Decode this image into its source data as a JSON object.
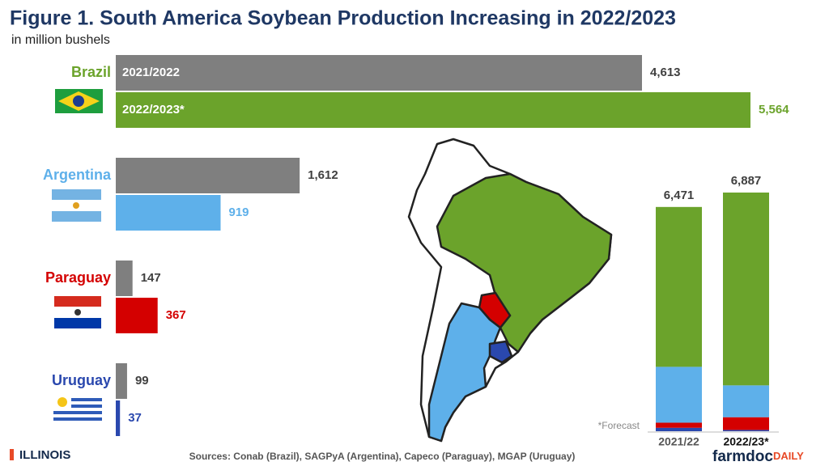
{
  "title": "Figure 1. South America Soybean Production Increasing in 2022/2023",
  "subtitle": "in million bushels",
  "source": "Sources: Conab (Brazil), SAGPyA (Argentina), Capeco (Paraguay), MGAP (Uruguay)",
  "logo_left": "ILLINOIS",
  "logo_right": {
    "main": "farmdoc",
    "suffix": "DAILY"
  },
  "chart_data": [
    {
      "type": "hbar",
      "categories": [
        "Brazil",
        "Argentina",
        "Paraguay",
        "Uruguay"
      ],
      "series": [
        {
          "name": "2021/2022",
          "color": "#7f7f7f",
          "label_color": "#404040",
          "values": [
            4613,
            1612,
            147,
            99
          ],
          "value_labels": [
            "4,613",
            "1,612",
            "147",
            "99"
          ]
        },
        {
          "name": "2022/2023*",
          "colors": [
            "#6ba32b",
            "#5eb0ea",
            "#d40000",
            "#2a48ae"
          ],
          "values": [
            5564,
            919,
            367,
            37
          ],
          "value_labels": [
            "5,564",
            "919",
            "367",
            "37"
          ]
        }
      ]
    },
    {
      "type": "stacked_bar",
      "categories": [
        "2021/22",
        "2022/23*"
      ],
      "series": [
        {
          "name": "Uruguay",
          "color": "#2a48ae",
          "values": [
            99,
            37
          ]
        },
        {
          "name": "Paraguay",
          "color": "#d40000",
          "values": [
            147,
            367
          ]
        },
        {
          "name": "Argentina",
          "color": "#5eb0ea",
          "values": [
            1612,
            919
          ]
        },
        {
          "name": "Brazil",
          "color": "#6ba32b",
          "values": [
            4613,
            5564
          ]
        }
      ],
      "totals": [
        {
          "value": 6471,
          "label": "6,471"
        },
        {
          "value": 6887,
          "label": "6,887"
        }
      ],
      "note": "*Forecast"
    }
  ]
}
